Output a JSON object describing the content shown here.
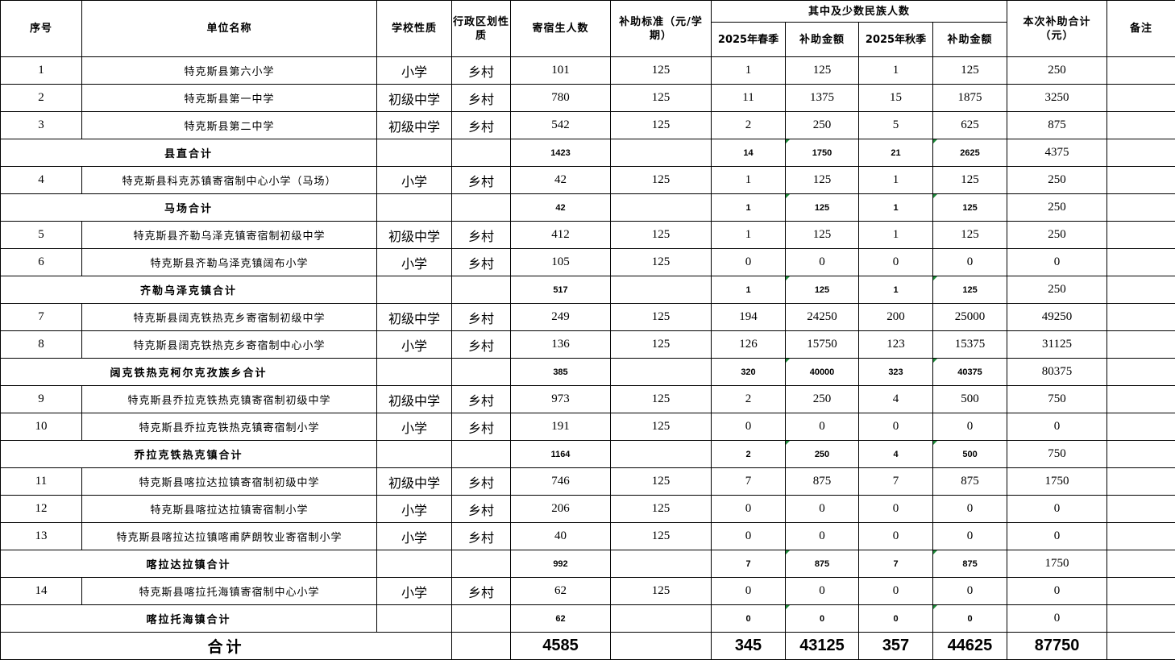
{
  "header": {
    "seq": "序号",
    "name": "单位名称",
    "school_type": "学校性质",
    "region_type": "行政区划性质",
    "boarders": "寄宿生人数",
    "standard": "补助标准（元/学期）",
    "minority_group": "其中及少数民族人数",
    "spring": "2025年春季",
    "spring_amount": "补助金额",
    "autumn": "2025年秋季",
    "autumn_amount": "补助金额",
    "total": "本次补助合计（元）",
    "remark": "备注"
  },
  "rows": [
    {
      "type": "school",
      "seq": "1",
      "name": "特克斯县第六小学",
      "school_type": "小学",
      "region": "乡村",
      "boarders": "101",
      "standard": "125",
      "spring": "1",
      "spring_amount": "125",
      "autumn": "1",
      "autumn_amount": "125",
      "total": "250"
    },
    {
      "type": "school",
      "seq": "2",
      "name": "特克斯县第一中学",
      "school_type": "初级中学",
      "region": "乡村",
      "boarders": "780",
      "standard": "125",
      "spring": "11",
      "spring_amount": "1375",
      "autumn": "15",
      "autumn_amount": "1875",
      "total": "3250"
    },
    {
      "type": "school",
      "seq": "3",
      "name": "特克斯县第二中学",
      "school_type": "初级中学",
      "region": "乡村",
      "boarders": "542",
      "standard": "125",
      "spring": "2",
      "spring_amount": "250",
      "autumn": "5",
      "autumn_amount": "625",
      "total": "875"
    },
    {
      "type": "subtotal",
      "name": "县直合计",
      "boarders": "1423",
      "spring": "14",
      "spring_amount": "1750",
      "autumn": "21",
      "autumn_amount": "2625",
      "total": "4375"
    },
    {
      "type": "school",
      "seq": "4",
      "name": "特克斯县科克苏镇寄宿制中心小学（马场）",
      "school_type": "小学",
      "region": "乡村",
      "boarders": "42",
      "standard": "125",
      "spring": "1",
      "spring_amount": "125",
      "autumn": "1",
      "autumn_amount": "125",
      "total": "250"
    },
    {
      "type": "subtotal",
      "name": "马场合计",
      "boarders": "42",
      "spring": "1",
      "spring_amount": "125",
      "autumn": "1",
      "autumn_amount": "125",
      "total": "250"
    },
    {
      "type": "school",
      "seq": "5",
      "name": "特克斯县齐勒乌泽克镇寄宿制初级中学",
      "school_type": "初级中学",
      "region": "乡村",
      "boarders": "412",
      "standard": "125",
      "spring": "1",
      "spring_amount": "125",
      "autumn": "1",
      "autumn_amount": "125",
      "total": "250"
    },
    {
      "type": "school",
      "seq": "6",
      "name": "特克斯县齐勒乌泽克镇阔布小学",
      "school_type": "小学",
      "region": "乡村",
      "boarders": "105",
      "standard": "125",
      "spring": "0",
      "spring_amount": "0",
      "autumn": "0",
      "autumn_amount": "0",
      "total": "0"
    },
    {
      "type": "subtotal",
      "name": "齐勒乌泽克镇合计",
      "boarders": "517",
      "spring": "1",
      "spring_amount": "125",
      "autumn": "1",
      "autumn_amount": "125",
      "total": "250"
    },
    {
      "type": "school",
      "seq": "7",
      "name": "特克斯县阔克铁热克乡寄宿制初级中学",
      "school_type": "初级中学",
      "region": "乡村",
      "boarders": "249",
      "standard": "125",
      "spring": "194",
      "spring_amount": "24250",
      "autumn": "200",
      "autumn_amount": "25000",
      "total": "49250"
    },
    {
      "type": "school",
      "seq": "8",
      "name": "特克斯县阔克铁热克乡寄宿制中心小学",
      "school_type": "小学",
      "region": "乡村",
      "boarders": "136",
      "standard": "125",
      "spring": "126",
      "spring_amount": "15750",
      "autumn": "123",
      "autumn_amount": "15375",
      "total": "31125"
    },
    {
      "type": "subtotal",
      "name": "阔克铁热克柯尔克孜族乡合计",
      "boarders": "385",
      "spring": "320",
      "spring_amount": "40000",
      "autumn": "323",
      "autumn_amount": "40375",
      "total": "80375"
    },
    {
      "type": "school",
      "seq": "9",
      "name": "特克斯县乔拉克铁热克镇寄宿制初级中学",
      "school_type": "初级中学",
      "region": "乡村",
      "boarders": "973",
      "standard": "125",
      "spring": "2",
      "spring_amount": "250",
      "autumn": "4",
      "autumn_amount": "500",
      "total": "750"
    },
    {
      "type": "school",
      "seq": "10",
      "name": "特克斯县乔拉克铁热克镇寄宿制小学",
      "school_type": "小学",
      "region": "乡村",
      "boarders": "191",
      "standard": "125",
      "spring": "0",
      "spring_amount": "0",
      "autumn": "0",
      "autumn_amount": "0",
      "total": "0"
    },
    {
      "type": "subtotal",
      "name": "乔拉克铁热克镇合计",
      "boarders": "1164",
      "spring": "2",
      "spring_amount": "250",
      "autumn": "4",
      "autumn_amount": "500",
      "total": "750"
    },
    {
      "type": "school",
      "seq": "11",
      "name": "特克斯县喀拉达拉镇寄宿制初级中学",
      "school_type": "初级中学",
      "region": "乡村",
      "boarders": "746",
      "standard": "125",
      "spring": "7",
      "spring_amount": "875",
      "autumn": "7",
      "autumn_amount": "875",
      "total": "1750"
    },
    {
      "type": "school",
      "seq": "12",
      "name": "特克斯县喀拉达拉镇寄宿制小学",
      "school_type": "小学",
      "region": "乡村",
      "boarders": "206",
      "standard": "125",
      "spring": "0",
      "spring_amount": "0",
      "autumn": "0",
      "autumn_amount": "0",
      "total": "0"
    },
    {
      "type": "school",
      "seq": "13",
      "name": "特克斯县喀拉达拉镇喀甫萨朗牧业寄宿制小学",
      "school_type": "小学",
      "region": "乡村",
      "boarders": "40",
      "standard": "125",
      "spring": "0",
      "spring_amount": "0",
      "autumn": "0",
      "autumn_amount": "0",
      "total": "0"
    },
    {
      "type": "subtotal",
      "name": "喀拉达拉镇合计",
      "boarders": "992",
      "spring": "7",
      "spring_amount": "875",
      "autumn": "7",
      "autumn_amount": "875",
      "total": "1750"
    },
    {
      "type": "school",
      "seq": "14",
      "name": "特克斯县喀拉托海镇寄宿制中心小学",
      "school_type": "小学",
      "region": "乡村",
      "boarders": "62",
      "standard": "125",
      "spring": "0",
      "spring_amount": "0",
      "autumn": "0",
      "autumn_amount": "0",
      "total": "0"
    },
    {
      "type": "subtotal",
      "name": "喀拉托海镇合计",
      "boarders": "62",
      "spring": "0",
      "spring_amount": "0",
      "autumn": "0",
      "autumn_amount": "0",
      "total": "0"
    },
    {
      "type": "total",
      "name": "合计",
      "boarders": "4585",
      "spring": "345",
      "spring_amount": "43125",
      "autumn": "357",
      "autumn_amount": "44625",
      "total": "87750"
    }
  ],
  "colors": {
    "grid": "#000000",
    "error_indicator": "#1e8a3a"
  }
}
